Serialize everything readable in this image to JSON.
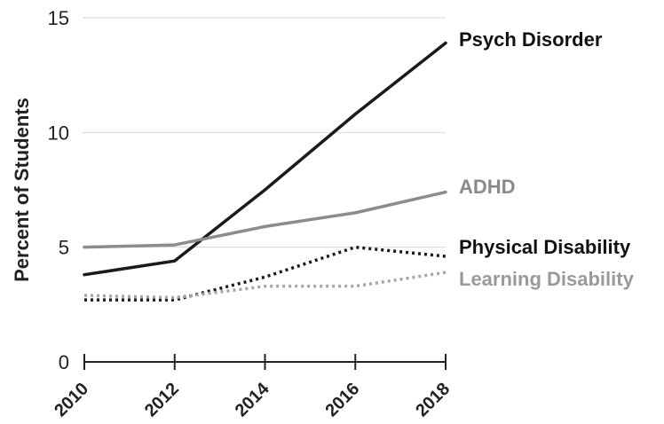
{
  "chart_data": {
    "type": "line",
    "title": "",
    "xlabel": "",
    "ylabel": "Percent of Students",
    "x": [
      2010,
      2012,
      2014,
      2016,
      2018
    ],
    "x_tick_labels": [
      "2010",
      "2012",
      "2014",
      "2016",
      "2018"
    ],
    "y_ticks": [
      0,
      5,
      10,
      15
    ],
    "y_tick_labels": [
      "0",
      "5",
      "10",
      "15"
    ],
    "ylim": [
      0,
      15
    ],
    "grid": true,
    "legend": "direct labels at right end of each line",
    "series": [
      {
        "name": "Psych Disorder",
        "values": [
          3.8,
          4.4,
          7.5,
          10.8,
          13.9
        ],
        "color": "#1a1a1a",
        "style": "solid",
        "label_color": "#111111"
      },
      {
        "name": "ADHD",
        "values": [
          5.0,
          5.1,
          5.9,
          6.5,
          7.4
        ],
        "color": "#8c8c8c",
        "style": "solid",
        "label_color": "#8a8a8a"
      },
      {
        "name": "Physical Disability",
        "values": [
          2.7,
          2.7,
          3.7,
          5.0,
          4.6
        ],
        "color": "#1a1a1a",
        "style": "dotted",
        "label_color": "#111111"
      },
      {
        "name": "Learning Disability",
        "values": [
          2.9,
          2.8,
          3.3,
          3.3,
          3.9
        ],
        "color": "#a6a6a6",
        "style": "dotted",
        "label_color": "#9a9a9a"
      }
    ]
  }
}
